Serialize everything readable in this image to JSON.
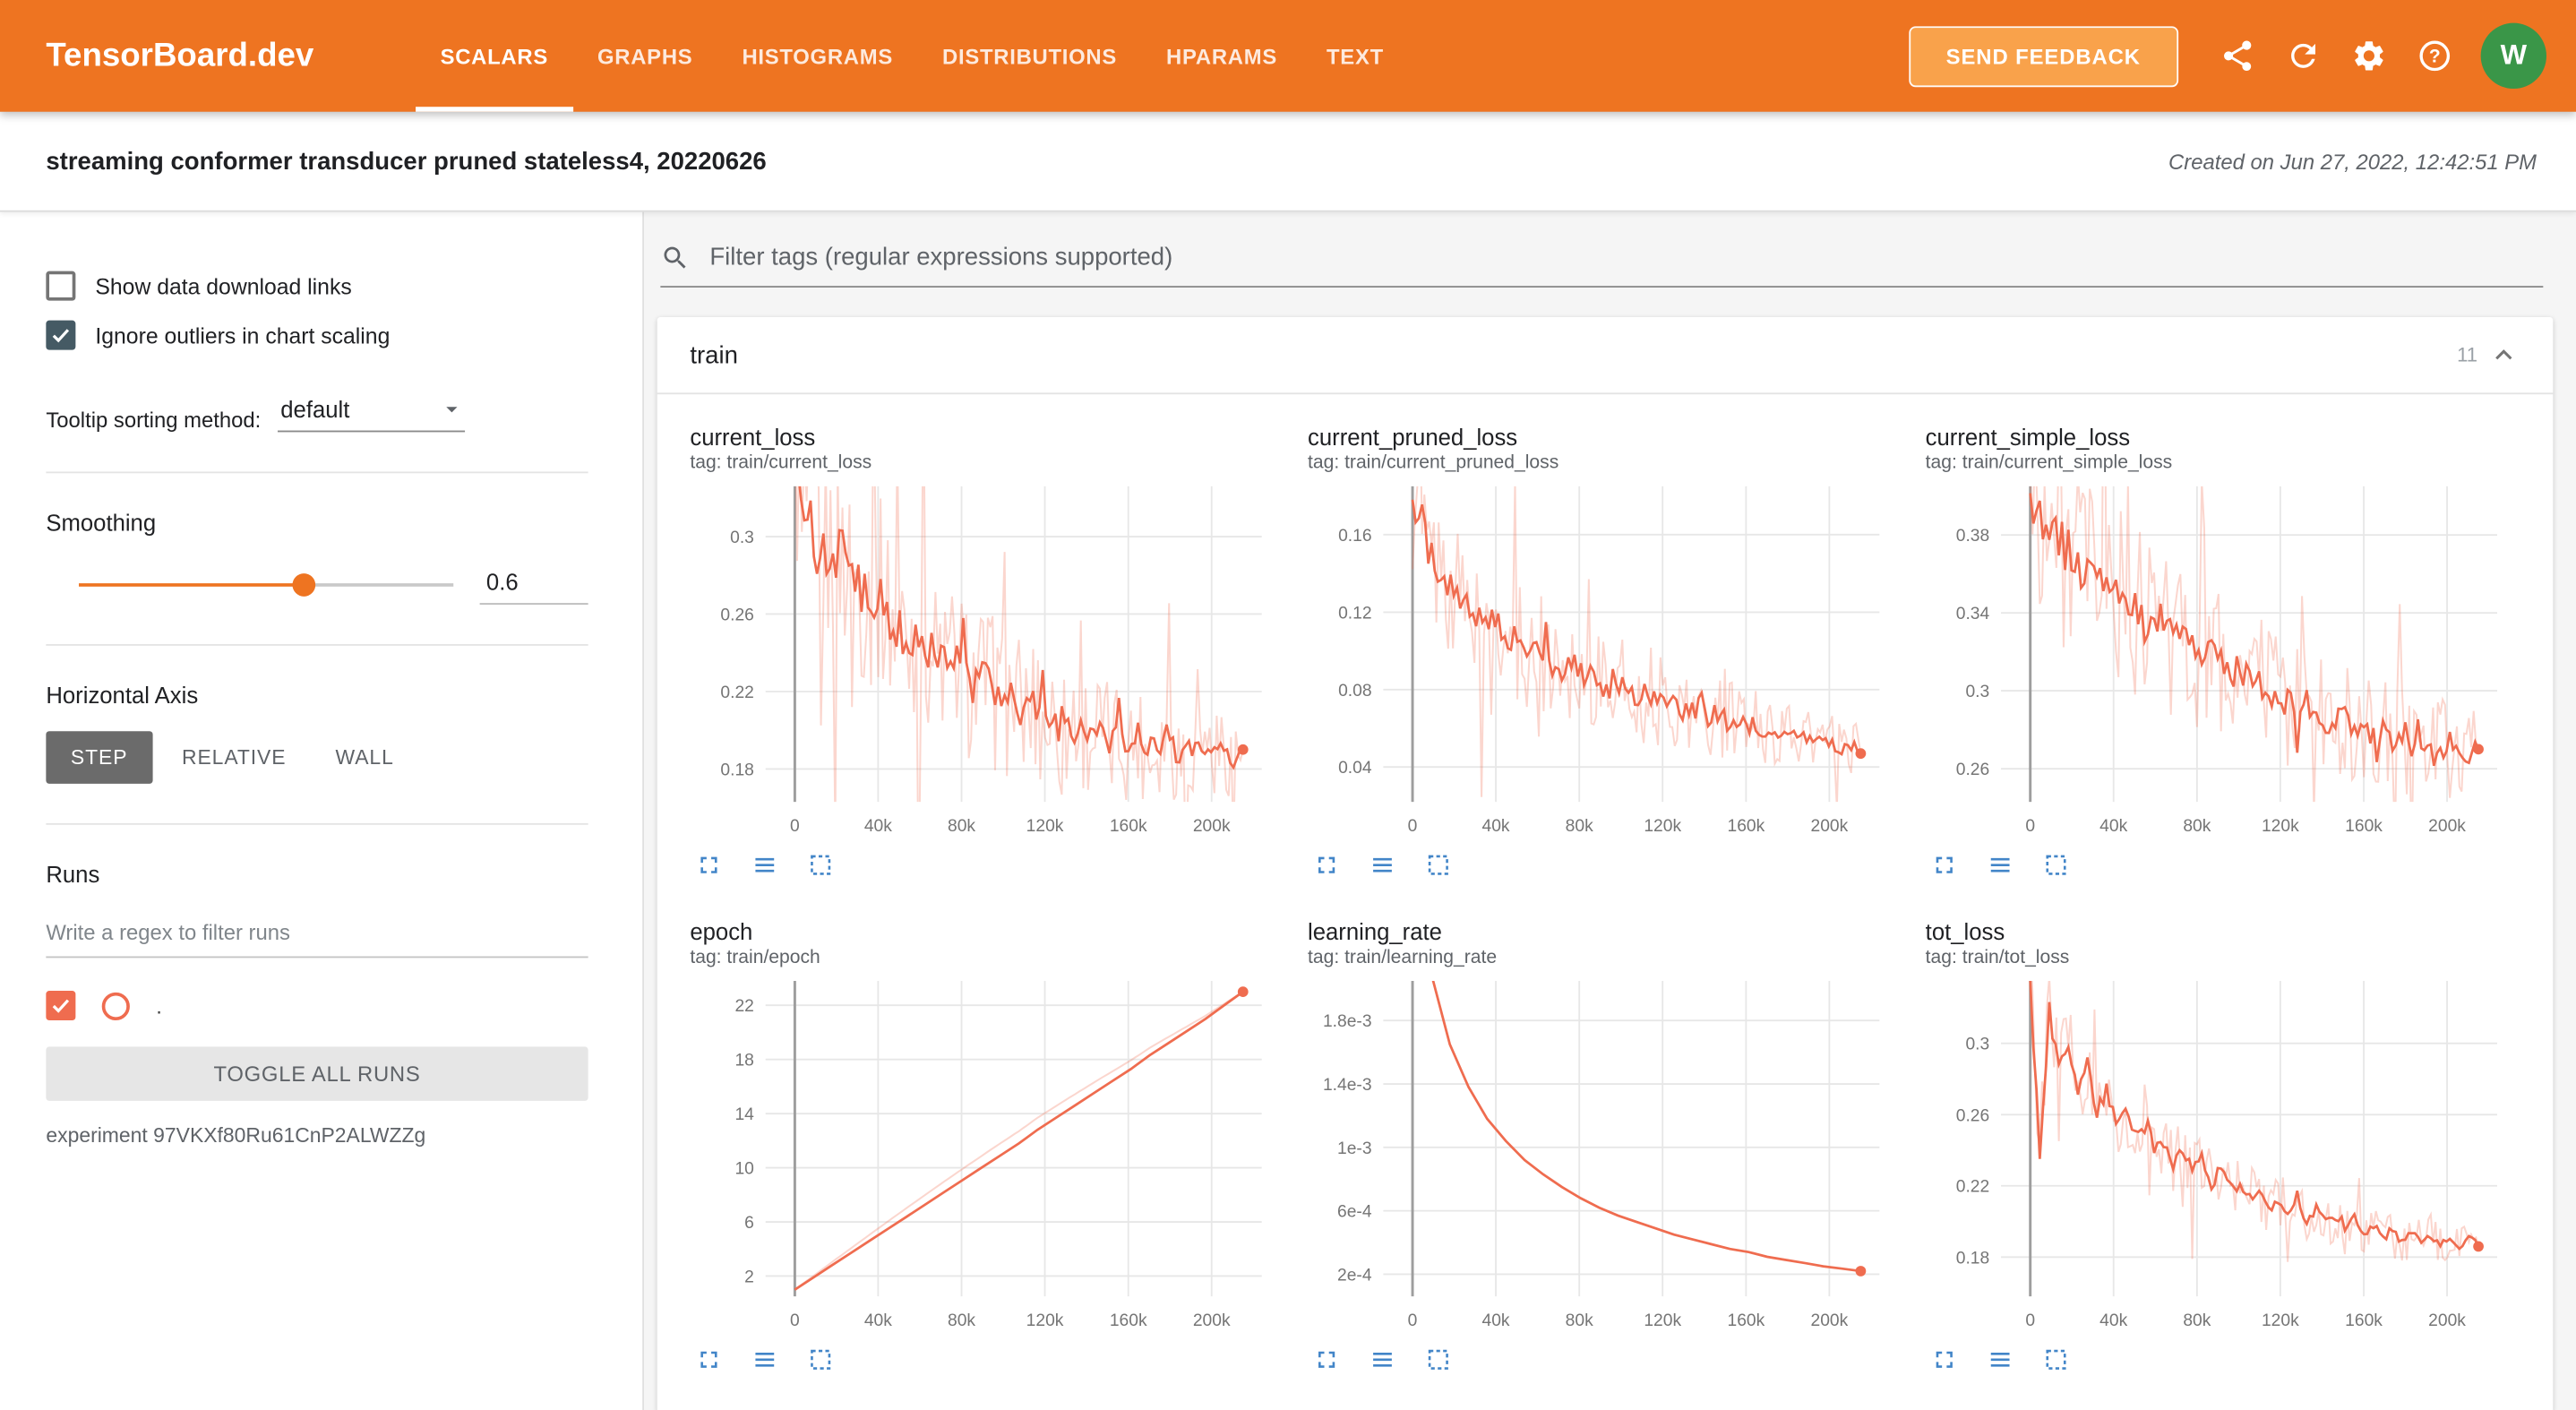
{
  "colors": {
    "appbar": "#ee7421",
    "appbar_light": "#f9a24b",
    "run": "#ef6c4f",
    "slider": "#ee7421",
    "icon_blue": "#4285c8",
    "avatar": "#3a9648",
    "checkbox_dark": "#455a64"
  },
  "header": {
    "brand": "TensorBoard.dev",
    "tabs": [
      {
        "label": "SCALARS",
        "active": true
      },
      {
        "label": "GRAPHS",
        "active": false
      },
      {
        "label": "HISTOGRAMS",
        "active": false
      },
      {
        "label": "DISTRIBUTIONS",
        "active": false
      },
      {
        "label": "HPARAMS",
        "active": false
      },
      {
        "label": "TEXT",
        "active": false
      }
    ],
    "send_feedback": "SEND FEEDBACK",
    "icons": [
      "share-icon",
      "refresh-icon",
      "settings-icon",
      "help-icon"
    ],
    "avatar_initial": "W"
  },
  "titlebar": {
    "experiment_title": "streaming conformer transducer pruned stateless4, 20220626",
    "created": "Created on Jun 27, 2022, 12:42:51 PM"
  },
  "sidebar": {
    "show_download": {
      "label": "Show data download links",
      "checked": false
    },
    "ignore_outliers": {
      "label": "Ignore outliers in chart scaling",
      "checked": true
    },
    "tooltip_sorting": {
      "label": "Tooltip sorting method:",
      "value": "default"
    },
    "smoothing": {
      "label": "Smoothing",
      "value": "0.6",
      "fraction": 0.6
    },
    "horizontal_axis": {
      "label": "Horizontal Axis",
      "options": [
        "STEP",
        "RELATIVE",
        "WALL"
      ],
      "selected": "STEP"
    },
    "runs": {
      "label": "Runs",
      "filter_placeholder": "Write a regex to filter runs",
      "run_name": ".",
      "run_checked": true,
      "toggle_all": "TOGGLE ALL RUNS",
      "experiment": "experiment 97VKXf80Ru61CnP2ALWZZg"
    }
  },
  "main": {
    "filter_placeholder": "Filter tags (regular expressions supported)",
    "section": {
      "name": "train",
      "count": "11",
      "collapsed": false
    }
  },
  "chart_data": [
    {
      "type": "line",
      "title": "current_loss",
      "tag": "tag: train/current_loss",
      "x_end": 215000,
      "xlim": [
        -14000,
        224000
      ],
      "x_ticks": [
        0,
        40000,
        80000,
        120000,
        160000,
        200000
      ],
      "x_tick_labels": [
        "0",
        "40k",
        "80k",
        "120k",
        "160k",
        "200k"
      ],
      "y_ticks": [
        0.18,
        0.22,
        0.26,
        0.3
      ],
      "y_tick_labels": [
        "0.18",
        "0.22",
        "0.26",
        "0.3"
      ],
      "ylim": [
        0.163,
        0.326
      ],
      "noise": 0.018,
      "raw_offset": 0,
      "end_dot": true,
      "values": [
        0.335,
        0.315,
        0.302,
        0.296,
        0.288,
        0.292,
        0.278,
        0.272,
        0.268,
        0.273,
        0.258,
        0.252,
        0.247,
        0.252,
        0.242,
        0.237,
        0.232,
        0.237,
        0.227,
        0.222,
        0.227,
        0.217,
        0.212,
        0.217,
        0.207,
        0.212,
        0.202,
        0.207,
        0.201,
        0.197,
        0.202,
        0.197,
        0.201,
        0.192,
        0.197,
        0.192,
        0.197,
        0.188,
        0.192,
        0.197,
        0.188,
        0.192,
        0.188,
        0.192,
        0.187,
        0.191,
        0.186,
        0.19
      ]
    },
    {
      "type": "line",
      "title": "current_pruned_loss",
      "tag": "tag: train/current_pruned_loss",
      "x_end": 215000,
      "xlim": [
        -14000,
        224000
      ],
      "x_ticks": [
        0,
        40000,
        80000,
        120000,
        160000,
        200000
      ],
      "x_tick_labels": [
        "0",
        "40k",
        "80k",
        "120k",
        "160k",
        "200k"
      ],
      "y_ticks": [
        0.04,
        0.08,
        0.12,
        0.16
      ],
      "y_tick_labels": [
        "0.04",
        "0.08",
        "0.12",
        "0.16"
      ],
      "ylim": [
        0.022,
        0.185
      ],
      "noise": 0.012,
      "raw_offset": 0,
      "end_dot": true,
      "values": [
        0.172,
        0.158,
        0.148,
        0.14,
        0.133,
        0.128,
        0.122,
        0.118,
        0.113,
        0.115,
        0.108,
        0.104,
        0.101,
        0.103,
        0.096,
        0.093,
        0.091,
        0.093,
        0.088,
        0.085,
        0.083,
        0.085,
        0.081,
        0.078,
        0.076,
        0.078,
        0.073,
        0.075,
        0.071,
        0.068,
        0.07,
        0.066,
        0.068,
        0.063,
        0.065,
        0.061,
        0.062,
        0.058,
        0.06,
        0.057,
        0.055,
        0.057,
        0.052,
        0.054,
        0.051,
        0.049,
        0.051,
        0.047
      ]
    },
    {
      "type": "line",
      "title": "current_simple_loss",
      "tag": "tag: train/current_simple_loss",
      "x_end": 215000,
      "xlim": [
        -14000,
        224000
      ],
      "x_ticks": [
        0,
        40000,
        80000,
        120000,
        160000,
        200000
      ],
      "x_tick_labels": [
        "0",
        "40k",
        "80k",
        "120k",
        "160k",
        "200k"
      ],
      "y_ticks": [
        0.26,
        0.3,
        0.34,
        0.38
      ],
      "y_tick_labels": [
        "0.26",
        "0.3",
        "0.34",
        "0.38"
      ],
      "ylim": [
        0.243,
        0.405
      ],
      "noise": 0.018,
      "raw_offset": 0,
      "end_dot": true,
      "values": [
        0.402,
        0.392,
        0.386,
        0.377,
        0.371,
        0.366,
        0.361,
        0.356,
        0.351,
        0.353,
        0.346,
        0.341,
        0.336,
        0.341,
        0.331,
        0.327,
        0.331,
        0.321,
        0.317,
        0.321,
        0.311,
        0.307,
        0.311,
        0.302,
        0.306,
        0.297,
        0.301,
        0.292,
        0.296,
        0.287,
        0.291,
        0.286,
        0.282,
        0.286,
        0.277,
        0.281,
        0.276,
        0.281,
        0.272,
        0.276,
        0.271,
        0.276,
        0.269,
        0.273,
        0.268,
        0.272,
        0.266,
        0.27
      ]
    },
    {
      "type": "line",
      "title": "epoch",
      "tag": "tag: train/epoch",
      "x_end": 215000,
      "xlim": [
        -14000,
        224000
      ],
      "x_ticks": [
        0,
        40000,
        80000,
        120000,
        160000,
        200000
      ],
      "x_tick_labels": [
        "0",
        "40k",
        "80k",
        "120k",
        "160k",
        "200k"
      ],
      "y_ticks": [
        2,
        6,
        10,
        14,
        18,
        22
      ],
      "y_tick_labels": [
        "2",
        "6",
        "10",
        "14",
        "18",
        "22"
      ],
      "ylim": [
        0.5,
        23.8
      ],
      "noise": 0,
      "raw_offset": 0.9,
      "end_dot": true,
      "values": [
        1.0,
        1.9,
        2.8,
        3.7,
        4.6,
        5.5,
        6.4,
        7.3,
        8.2,
        9.1,
        10.0,
        10.9,
        11.8,
        12.8,
        13.7,
        14.6,
        15.5,
        16.4,
        17.3,
        18.3,
        19.2,
        20.1,
        21.0,
        22.0,
        23.0
      ]
    },
    {
      "type": "line",
      "title": "learning_rate",
      "tag": "tag: train/learning_rate",
      "x_end": 215000,
      "xlim": [
        -14000,
        224000
      ],
      "x_ticks": [
        0,
        40000,
        80000,
        120000,
        160000,
        200000
      ],
      "x_tick_labels": [
        "0",
        "40k",
        "80k",
        "120k",
        "160k",
        "200k"
      ],
      "y_ticks": [
        0.0002,
        0.0006,
        0.001,
        0.0014,
        0.0018
      ],
      "y_tick_labels": [
        "2e-4",
        "6e-4",
        "1e-3",
        "1.4e-3",
        "1.8e-3"
      ],
      "ylim": [
        6e-05,
        0.00205
      ],
      "noise": 0,
      "raw_offset": 0,
      "end_dot": true,
      "values": [
        0.0032,
        0.0021,
        0.00165,
        0.00138,
        0.00118,
        0.00104,
        0.00092,
        0.00083,
        0.00075,
        0.00068,
        0.00062,
        0.00057,
        0.00053,
        0.00049,
        0.00045,
        0.00042,
        0.00039,
        0.00036,
        0.00034,
        0.00031,
        0.00029,
        0.00027,
        0.00025,
        0.000235,
        0.00022
      ]
    },
    {
      "type": "line",
      "title": "tot_loss",
      "tag": "tag: train/tot_loss",
      "x_end": 215000,
      "xlim": [
        -14000,
        224000
      ],
      "x_ticks": [
        0,
        40000,
        80000,
        120000,
        160000,
        200000
      ],
      "x_tick_labels": [
        "0",
        "40k",
        "80k",
        "120k",
        "160k",
        "200k"
      ],
      "y_ticks": [
        0.18,
        0.22,
        0.26,
        0.3
      ],
      "y_tick_labels": [
        "0.18",
        "0.22",
        "0.26",
        "0.3"
      ],
      "ylim": [
        0.158,
        0.335
      ],
      "noise": 0.008,
      "raw_offset": 0,
      "end_dot": true,
      "values": [
        0.335,
        0.24,
        0.318,
        0.286,
        0.302,
        0.272,
        0.288,
        0.262,
        0.274,
        0.254,
        0.264,
        0.247,
        0.254,
        0.24,
        0.247,
        0.234,
        0.24,
        0.227,
        0.234,
        0.222,
        0.228,
        0.217,
        0.223,
        0.212,
        0.218,
        0.208,
        0.214,
        0.204,
        0.21,
        0.2,
        0.207,
        0.198,
        0.204,
        0.195,
        0.201,
        0.193,
        0.199,
        0.191,
        0.197,
        0.189,
        0.195,
        0.188,
        0.193,
        0.187,
        0.191,
        0.186,
        0.19,
        0.186
      ]
    }
  ]
}
